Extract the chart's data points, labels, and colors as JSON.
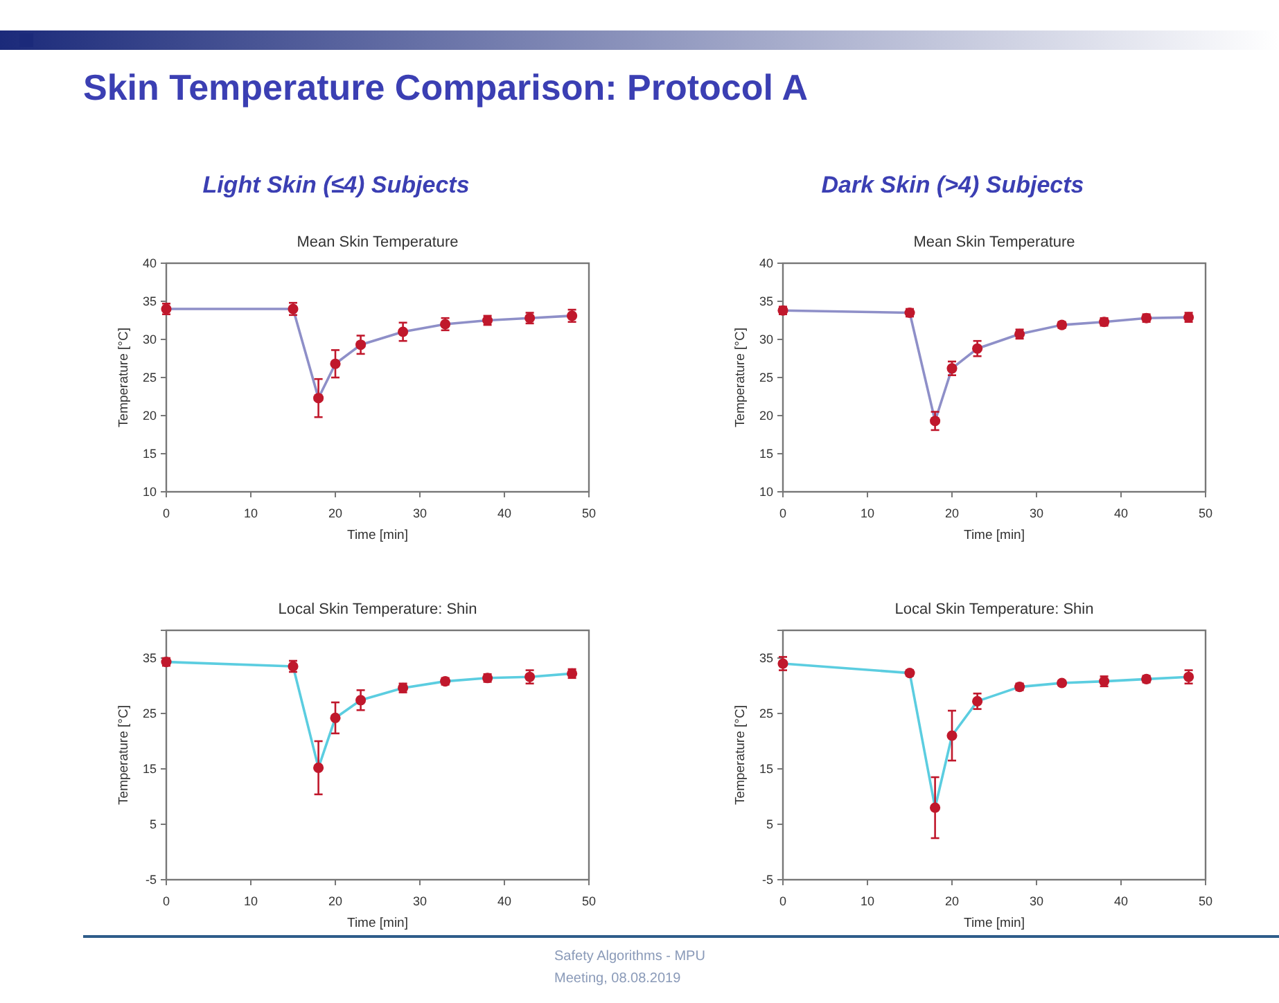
{
  "chart_data": [
    {
      "type": "line",
      "title": "Mean Skin Temperature",
      "subtitle": "Light Skin (≤4) Subjects",
      "xlabel": "Time [min]",
      "ylabel": "Temperature [°C]",
      "annotations": [
        "Skin Temperature Comparison: Protocol A"
      ],
      "x": [
        0,
        15,
        18,
        20,
        23,
        28,
        33,
        38,
        43,
        48
      ],
      "xlim": [
        0,
        50
      ],
      "xticks": [
        0,
        10,
        20,
        30,
        40,
        50
      ],
      "ylim": [
        10,
        40
      ],
      "yticks": [
        10,
        15,
        20,
        25,
        30,
        35,
        40
      ],
      "marker": "circle",
      "grid": false,
      "series": [
        {
          "color": "#8e8fc8",
          "colors": [
            "#c0182c",
            "#c0182c",
            "#c0182c",
            "#c0182c",
            "#c0182c",
            "#c0182c",
            "#c0182c",
            "#c0182c",
            "#c0182c",
            "#c0182c"
          ],
          "values": [
            34,
            34,
            22.3,
            26.8,
            29.3,
            31,
            32,
            32.5,
            32.8,
            33.1
          ],
          "errors": [
            0.7,
            0.8,
            2.5,
            1.8,
            1.2,
            1.2,
            0.8,
            0.6,
            0.7,
            0.8
          ]
        }
      ]
    },
    {
      "type": "line",
      "title": "Mean Skin Temperature",
      "subtitle": "Dark Skin (>4) Subjects",
      "xlabel": "Time [min]",
      "ylabel": "Temperature [°C]",
      "x": [
        0,
        15,
        18,
        20,
        23,
        28,
        33,
        38,
        43,
        48
      ],
      "xlim": [
        0,
        50
      ],
      "xticks": [
        0,
        10,
        20,
        30,
        40,
        50
      ],
      "ylim": [
        10,
        40
      ],
      "yticks": [
        10,
        15,
        20,
        25,
        30,
        35,
        40
      ],
      "marker": "circle",
      "grid": false,
      "series": [
        {
          "color": "#8e8fc8",
          "colors": [
            "#c0182c",
            "#c0182c",
            "#c0182c",
            "#c0182c",
            "#c0182c",
            "#c0182c",
            "#c0182c",
            "#c0182c",
            "#c0182c",
            "#c0182c"
          ],
          "values": [
            33.8,
            33.5,
            19.3,
            26.2,
            28.8,
            30.7,
            31.9,
            32.3,
            32.8,
            32.9
          ],
          "errors": [
            0.5,
            0.5,
            1.2,
            0.9,
            1.0,
            0.6,
            0.4,
            0.5,
            0.5,
            0.6
          ]
        }
      ]
    },
    {
      "type": "line",
      "title": "Local Skin Temperature: Shin",
      "xlabel": "Time [min]",
      "ylabel": "Temperature [°C]",
      "annotations": [
        "Safety Algorithms - MPU"
      ],
      "x": [
        0,
        15,
        18,
        20,
        23,
        28,
        33,
        38,
        43,
        48
      ],
      "xlim": [
        0,
        50
      ],
      "xticks": [
        0,
        10,
        20,
        30,
        40,
        50
      ],
      "ylim": [
        -5,
        40
      ],
      "yticks": [
        -5,
        5,
        15,
        25,
        35
      ],
      "marker": "circle",
      "grid": false,
      "series": [
        {
          "color": "#5bcde0",
          "colors": [
            "#c0182c",
            "#c0182c",
            "#c0182c",
            "#c0182c",
            "#c0182c",
            "#c0182c",
            "#c0182c",
            "#c0182c",
            "#c0182c",
            "#c0182c"
          ],
          "values": [
            34.3,
            33.5,
            15.2,
            24.2,
            27.4,
            29.6,
            30.8,
            31.4,
            31.6,
            32.2
          ],
          "errors": [
            0.7,
            1.0,
            4.8,
            2.8,
            1.8,
            0.8,
            0.6,
            0.7,
            1.2,
            0.8
          ]
        }
      ]
    },
    {
      "type": "line",
      "title": "Local Skin Temperature: Shin",
      "xlabel": "Time [min]",
      "ylabel": "Temperature [°C]",
      "annotations": [
        "Meeting, 08.08.2019"
      ],
      "x": [
        0,
        15,
        18,
        20,
        23,
        28,
        33,
        38,
        43,
        48
      ],
      "xlim": [
        0,
        50
      ],
      "xticks": [
        0,
        10,
        20,
        30,
        40,
        50
      ],
      "ylim": [
        -5,
        40
      ],
      "yticks": [
        -5,
        5,
        15,
        25,
        35
      ],
      "marker": "circle",
      "grid": false,
      "series": [
        {
          "color": "#5bcde0",
          "colors": [
            "#c0182c",
            "#c0182c",
            "#c0182c",
            "#c0182c",
            "#c0182c",
            "#c0182c",
            "#c0182c",
            "#c0182c",
            "#c0182c",
            "#c0182c"
          ],
          "values": [
            34,
            32.3,
            8,
            21,
            27.2,
            29.8,
            30.5,
            30.8,
            31.2,
            31.6
          ],
          "errors": [
            1.2,
            0.5,
            5.5,
            4.5,
            1.4,
            0.6,
            0.4,
            0.9,
            0.6,
            1.2
          ]
        }
      ]
    }
  ]
}
